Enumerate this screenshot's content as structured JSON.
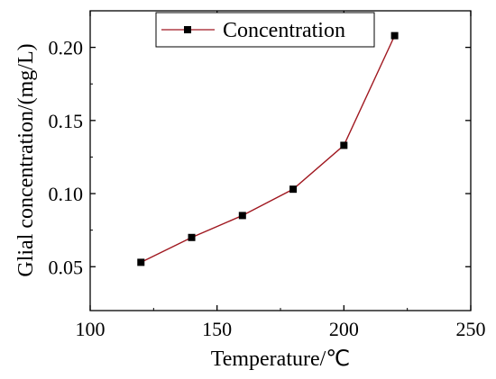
{
  "chart_data": {
    "type": "line",
    "xlabel": "Temperature/℃",
    "ylabel": "Glial concentration/(mg/L)",
    "xlim": [
      100,
      250
    ],
    "ylim": [
      0.02,
      0.225
    ],
    "xticks": [
      100,
      150,
      200,
      250
    ],
    "yticks": [
      0.05,
      0.1,
      0.15,
      0.2
    ],
    "xtick_labels": [
      "100",
      "150",
      "200",
      "250"
    ],
    "ytick_labels": [
      "0.05",
      "0.10",
      "0.15",
      "0.20"
    ],
    "grid": false,
    "legend_position": "top",
    "series": [
      {
        "name": "Concentration",
        "color": "#a01820",
        "marker": "square",
        "x": [
          120,
          140,
          160,
          180,
          200,
          220
        ],
        "y": [
          0.053,
          0.07,
          0.085,
          0.103,
          0.133,
          0.208
        ]
      }
    ]
  }
}
